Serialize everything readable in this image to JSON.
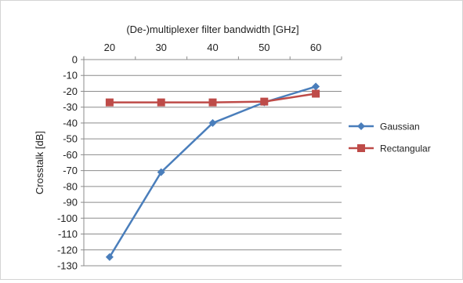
{
  "chart_data": {
    "type": "line",
    "xlabel": "(De-)multiplexer filter bandwidth [GHz]",
    "ylabel": "Crosstalk [dB]",
    "x": [
      20,
      30,
      40,
      50,
      60
    ],
    "ylim": [
      -130,
      0
    ],
    "ytick_step": 10,
    "xaxis_position": "top",
    "grid": "horizontal",
    "legend_position": "right",
    "series": [
      {
        "name": "Gaussian",
        "values": [
          -124.5,
          -71,
          -40,
          -27,
          -17
        ],
        "color": "#4a7ebb",
        "marker": "diamond"
      },
      {
        "name": "Rectangular",
        "values": [
          -27,
          -27,
          -27,
          -26.5,
          -21.5
        ],
        "color": "#be4b48",
        "marker": "square"
      }
    ]
  }
}
